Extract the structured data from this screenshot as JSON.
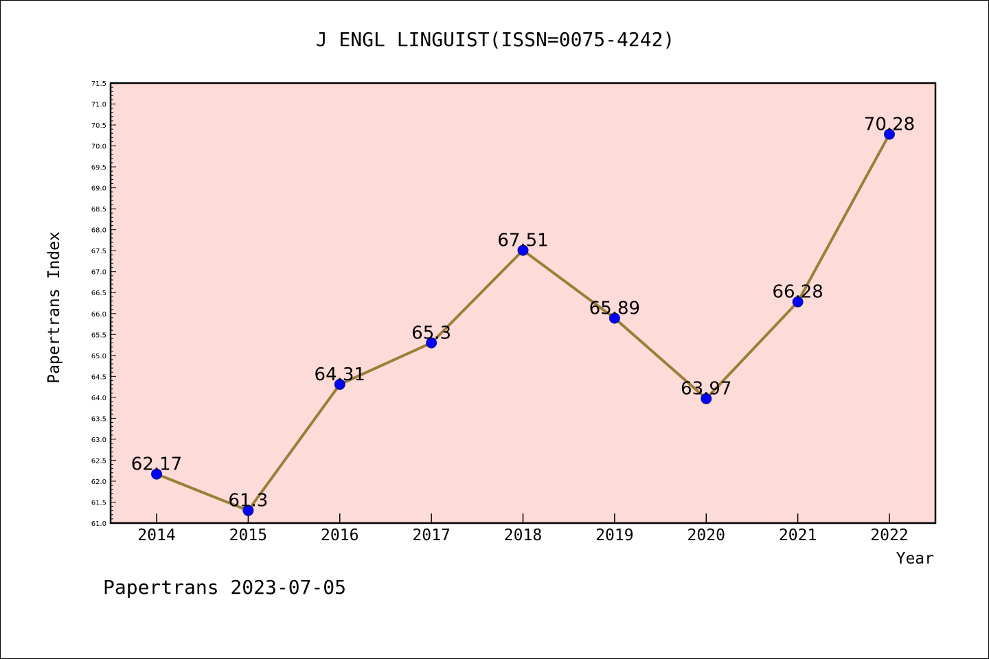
{
  "chart_data": {
    "type": "line",
    "title": "J ENGL LINGUIST(ISSN=0075-4242)",
    "xlabel": "Year",
    "ylabel": "Papertrans Index",
    "categories": [
      "2014",
      "2015",
      "2016",
      "2017",
      "2018",
      "2019",
      "2020",
      "2021",
      "2022"
    ],
    "values": [
      62.17,
      61.3,
      64.31,
      65.3,
      67.51,
      65.89,
      63.97,
      66.28,
      70.28
    ],
    "data_labels": [
      "62.17",
      "61.3",
      "64.31",
      "65.3",
      "67.51",
      "65.89",
      "63.97",
      "66.28",
      "70.28"
    ],
    "ylim": [
      61.0,
      71.5
    ],
    "y_ticks": [
      "61.0",
      "61.5",
      "62.0",
      "62.5",
      "63.0",
      "63.5",
      "64.0",
      "64.5",
      "65.0",
      "65.5",
      "66.0",
      "66.5",
      "67.0",
      "67.5",
      "68.0",
      "68.5",
      "69.0",
      "69.5",
      "70.0",
      "70.5",
      "71.0",
      "71.5"
    ],
    "grid": false,
    "footer": "Papertrans 2023-07-05",
    "colors": {
      "plot_background": "#fddbd8",
      "line": "#9b7f3a",
      "marker": "#0000ff",
      "frame": "#000000"
    }
  }
}
